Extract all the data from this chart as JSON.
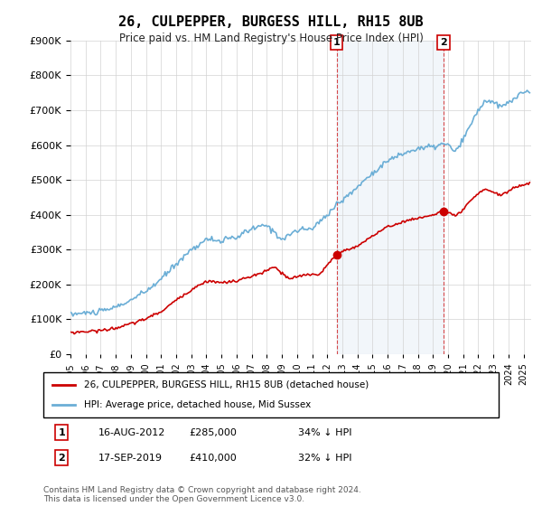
{
  "title": "26, CULPEPPER, BURGESS HILL, RH15 8UB",
  "subtitle": "Price paid vs. HM Land Registry's House Price Index (HPI)",
  "ylabel_ticks": [
    "£0",
    "£100K",
    "£200K",
    "£300K",
    "£400K",
    "£500K",
    "£600K",
    "£700K",
    "£800K",
    "£900K"
  ],
  "ylim": [
    0,
    900000
  ],
  "xlim_start": 1995.0,
  "xlim_end": 2025.5,
  "hpi_color": "#6baed6",
  "price_color": "#cc0000",
  "background_color": "#f0f4ff",
  "transaction1_date": 2012.625,
  "transaction1_price": 285000,
  "transaction2_date": 2019.708,
  "transaction2_price": 410000,
  "legend_label1": "26, CULPEPPER, BURGESS HILL, RH15 8UB (detached house)",
  "legend_label2": "HPI: Average price, detached house, Mid Sussex",
  "note1_label": "1",
  "note1_date": "16-AUG-2012",
  "note1_price": "£285,000",
  "note1_pct": "34% ↓ HPI",
  "note2_label": "2",
  "note2_date": "17-SEP-2019",
  "note2_price": "£410,000",
  "note2_pct": "32% ↓ HPI",
  "footer": "Contains HM Land Registry data © Crown copyright and database right 2024.\nThis data is licensed under the Open Government Licence v3.0."
}
